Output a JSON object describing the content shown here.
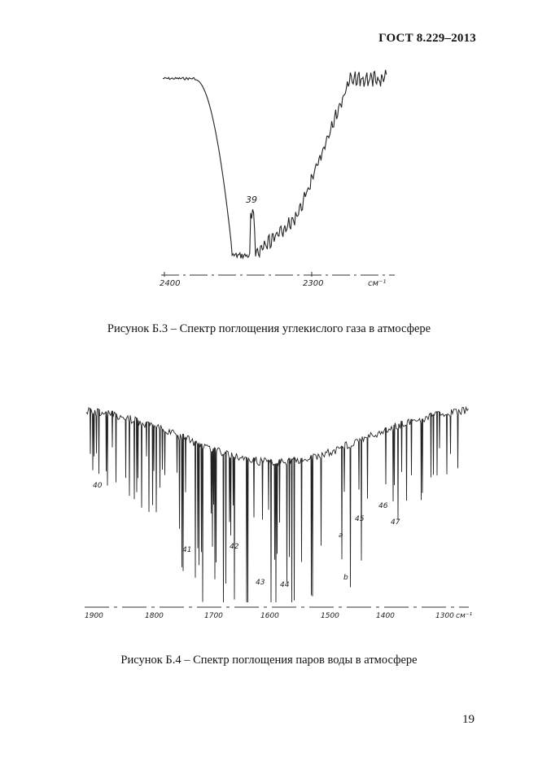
{
  "header": {
    "standard": "ГОСТ 8.229–2013"
  },
  "figures": [
    {
      "caption": "Рисунок Б.3 – Спектр поглощения углекислого газа в атмосфере",
      "axis_ticks": [
        "2400",
        "2300"
      ],
      "unit": "см⁻¹",
      "annotations": [
        "39"
      ]
    },
    {
      "caption": "Рисунок Б.4 – Спектр поглощения паров воды в атмосфере",
      "axis_ticks": [
        "1900",
        "1800",
        "1700",
        "1600",
        "1500",
        "1400",
        "1300"
      ],
      "unit": "см⁻¹",
      "annotations": [
        "40",
        "41",
        "42",
        "43",
        "44",
        "a",
        "45",
        "b",
        "46",
        "47"
      ]
    }
  ],
  "page_number": "19"
}
